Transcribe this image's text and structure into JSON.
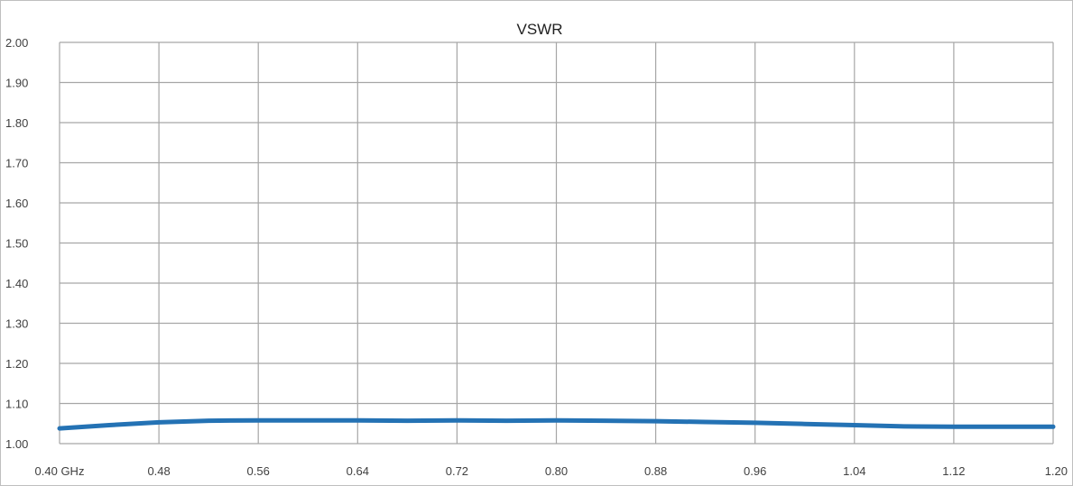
{
  "chart_data": {
    "type": "line",
    "title": "VSWR",
    "xlabel": "",
    "ylabel": "",
    "xlim": [
      0.4,
      1.2
    ],
    "ylim": [
      1.0,
      2.0
    ],
    "x_ticks": [
      0.4,
      0.48,
      0.56,
      0.64,
      0.72,
      0.8,
      0.88,
      0.96,
      1.04,
      1.12,
      1.2
    ],
    "x_tick_labels": [
      "0.40 GHz",
      "0.48",
      "0.56",
      "0.64",
      "0.72",
      "0.80",
      "0.88",
      "0.96",
      "1.04",
      "1.12",
      "1.20"
    ],
    "y_ticks": [
      1.0,
      1.1,
      1.2,
      1.3,
      1.4,
      1.5,
      1.6,
      1.7,
      1.8,
      1.9,
      2.0
    ],
    "y_tick_labels": [
      "1.00",
      "1.10",
      "1.20",
      "1.30",
      "1.40",
      "1.50",
      "1.60",
      "1.70",
      "1.80",
      "1.90",
      "2.00"
    ],
    "grid": true,
    "legend": "none",
    "series": [
      {
        "color": "#2472b4",
        "x": [
          0.4,
          0.44,
          0.48,
          0.52,
          0.56,
          0.6,
          0.64,
          0.68,
          0.72,
          0.76,
          0.8,
          0.84,
          0.88,
          0.92,
          0.96,
          1.0,
          1.04,
          1.08,
          1.12,
          1.16,
          1.2
        ],
        "y": [
          1.038,
          1.046,
          1.053,
          1.057,
          1.058,
          1.058,
          1.058,
          1.057,
          1.058,
          1.057,
          1.058,
          1.057,
          1.056,
          1.054,
          1.052,
          1.049,
          1.046,
          1.043,
          1.042,
          1.042,
          1.042
        ]
      }
    ]
  }
}
